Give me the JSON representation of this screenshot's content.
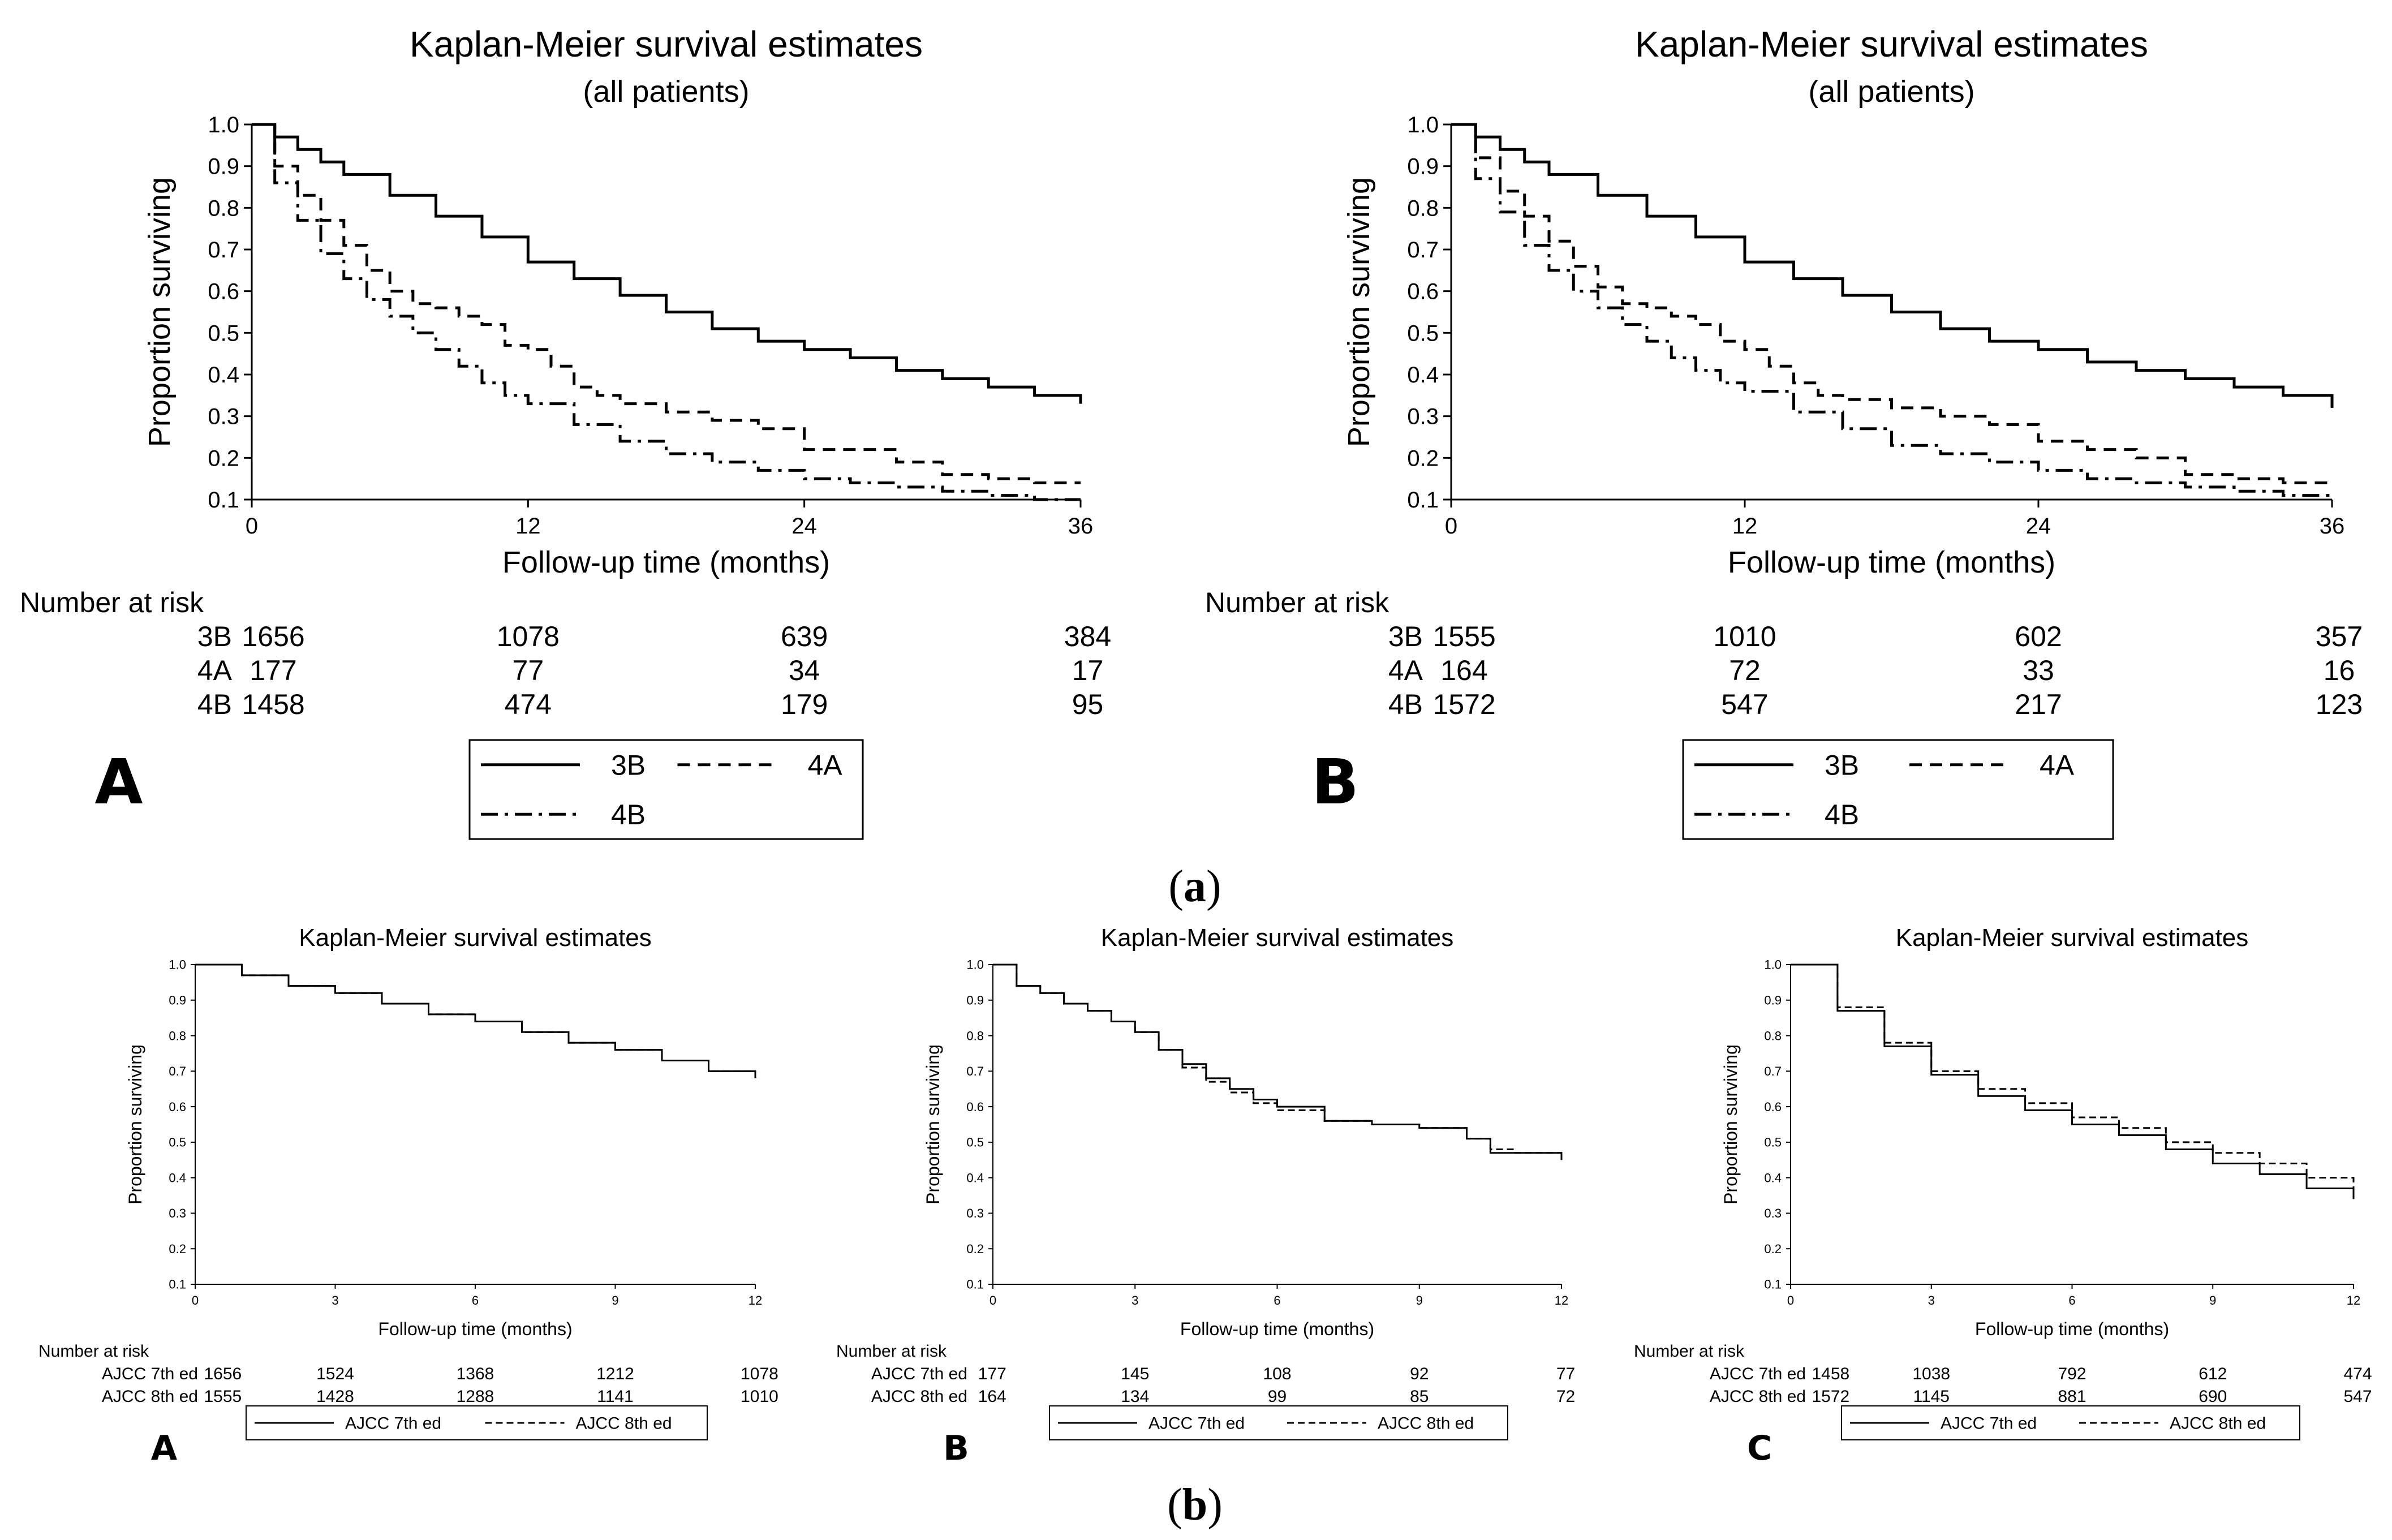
{
  "captions": {
    "a_open": "(",
    "a_letter": "a",
    "a_close": ")",
    "b_open": "(",
    "b_letter": "b",
    "b_close": ")"
  },
  "chart_data": [
    {
      "id": "a-A",
      "type": "line",
      "panel_label": "A",
      "title": "Kaplan-Meier survival estimates",
      "subtitle": "(all patients)",
      "xlabel": "Follow-up time (months)",
      "ylabel": "Proportion surviving",
      "xlim": [
        0,
        36
      ],
      "ylim": [
        0.1,
        1.0
      ],
      "xticks": [
        0,
        12,
        24,
        36
      ],
      "yticks": [
        0.1,
        0.2,
        0.3,
        0.4,
        0.5,
        0.6,
        0.7,
        0.8,
        0.9,
        1.0
      ],
      "series": [
        {
          "name": "3B",
          "style": "solid",
          "x": [
            0,
            1,
            2,
            3,
            4,
            6,
            8,
            10,
            12,
            14,
            16,
            18,
            20,
            22,
            24,
            26,
            28,
            30,
            32,
            34,
            36
          ],
          "y": [
            1.0,
            0.97,
            0.94,
            0.91,
            0.88,
            0.83,
            0.78,
            0.73,
            0.67,
            0.63,
            0.59,
            0.55,
            0.51,
            0.48,
            0.46,
            0.44,
            0.41,
            0.39,
            0.37,
            0.35,
            0.33
          ]
        },
        {
          "name": "4A",
          "style": "dashed",
          "x": [
            0,
            1,
            2,
            3,
            4,
            5,
            6,
            7,
            8,
            9,
            10,
            11,
            12,
            13,
            14,
            15,
            16,
            18,
            20,
            22,
            24,
            26,
            28,
            30,
            32,
            34,
            36
          ],
          "y": [
            1.0,
            0.9,
            0.83,
            0.77,
            0.71,
            0.65,
            0.6,
            0.57,
            0.56,
            0.54,
            0.52,
            0.47,
            0.46,
            0.42,
            0.37,
            0.35,
            0.33,
            0.31,
            0.29,
            0.27,
            0.22,
            0.22,
            0.19,
            0.16,
            0.15,
            0.14,
            0.14
          ]
        },
        {
          "name": "4B",
          "style": "dashdot",
          "x": [
            0,
            1,
            2,
            3,
            4,
            5,
            6,
            7,
            8,
            9,
            10,
            11,
            12,
            14,
            16,
            18,
            20,
            22,
            24,
            26,
            28,
            30,
            32,
            34,
            36
          ],
          "y": [
            1.0,
            0.86,
            0.77,
            0.69,
            0.63,
            0.58,
            0.54,
            0.5,
            0.46,
            0.42,
            0.38,
            0.35,
            0.33,
            0.28,
            0.24,
            0.21,
            0.19,
            0.17,
            0.15,
            0.14,
            0.13,
            0.12,
            0.11,
            0.1,
            0.1
          ]
        }
      ],
      "risk_table": {
        "header": "Number at risk",
        "rows": [
          {
            "label": "3B",
            "values": [
              "1656",
              "1078",
              "639",
              "384"
            ]
          },
          {
            "label": "4A",
            "values": [
              "177",
              "77",
              "34",
              "17"
            ]
          },
          {
            "label": "4B",
            "values": [
              "1458",
              "474",
              "179",
              "95"
            ]
          }
        ]
      },
      "legend": [
        "3B",
        "4A",
        "4B"
      ]
    },
    {
      "id": "a-B",
      "type": "line",
      "panel_label": "B",
      "title": "Kaplan-Meier survival estimates",
      "subtitle": "(all patients)",
      "xlabel": "Follow-up time (months)",
      "ylabel": "Proportion surviving",
      "xlim": [
        0,
        36
      ],
      "ylim": [
        0.1,
        1.0
      ],
      "xticks": [
        0,
        12,
        24,
        36
      ],
      "yticks": [
        0.1,
        0.2,
        0.3,
        0.4,
        0.5,
        0.6,
        0.7,
        0.8,
        0.9,
        1.0
      ],
      "series": [
        {
          "name": "3B",
          "style": "solid",
          "x": [
            0,
            1,
            2,
            3,
            4,
            6,
            8,
            10,
            12,
            14,
            16,
            18,
            20,
            22,
            24,
            26,
            28,
            30,
            32,
            34,
            36
          ],
          "y": [
            1.0,
            0.97,
            0.94,
            0.91,
            0.88,
            0.83,
            0.78,
            0.73,
            0.67,
            0.63,
            0.59,
            0.55,
            0.51,
            0.48,
            0.46,
            0.43,
            0.41,
            0.39,
            0.37,
            0.35,
            0.32
          ]
        },
        {
          "name": "4A",
          "style": "dashed",
          "x": [
            0,
            1,
            2,
            3,
            4,
            5,
            6,
            7,
            8,
            9,
            10,
            11,
            12,
            13,
            14,
            15,
            16,
            18,
            20,
            22,
            24,
            26,
            28,
            30,
            32,
            34,
            36
          ],
          "y": [
            1.0,
            0.92,
            0.84,
            0.78,
            0.72,
            0.66,
            0.61,
            0.57,
            0.56,
            0.54,
            0.52,
            0.48,
            0.46,
            0.42,
            0.38,
            0.35,
            0.34,
            0.32,
            0.3,
            0.28,
            0.24,
            0.22,
            0.2,
            0.16,
            0.15,
            0.14,
            0.14
          ]
        },
        {
          "name": "4B",
          "style": "dashdot",
          "x": [
            0,
            1,
            2,
            3,
            4,
            5,
            6,
            7,
            8,
            9,
            10,
            11,
            12,
            14,
            16,
            18,
            20,
            22,
            24,
            26,
            28,
            30,
            32,
            34,
            36
          ],
          "y": [
            1.0,
            0.87,
            0.79,
            0.71,
            0.65,
            0.6,
            0.56,
            0.52,
            0.48,
            0.44,
            0.41,
            0.38,
            0.36,
            0.31,
            0.27,
            0.23,
            0.21,
            0.19,
            0.17,
            0.15,
            0.14,
            0.13,
            0.12,
            0.11,
            0.11
          ]
        }
      ],
      "risk_table": {
        "header": "Number at risk",
        "rows": [
          {
            "label": "3B",
            "values": [
              "1555",
              "1010",
              "602",
              "357"
            ]
          },
          {
            "label": "4A",
            "values": [
              "164",
              "72",
              "33",
              "16"
            ]
          },
          {
            "label": "4B",
            "values": [
              "1572",
              "547",
              "217",
              "123"
            ]
          }
        ]
      },
      "legend": [
        "3B",
        "4A",
        "4B"
      ]
    },
    {
      "id": "b-A",
      "type": "line",
      "panel_label": "A",
      "title": "Kaplan-Meier survival estimates",
      "xlabel": "Follow-up time (months)",
      "ylabel": "Proportion surviving",
      "xlim": [
        0,
        12
      ],
      "ylim": [
        0.1,
        1.0
      ],
      "xticks": [
        0,
        3,
        6,
        9,
        12
      ],
      "yticks": [
        0.1,
        0.2,
        0.3,
        0.4,
        0.5,
        0.6,
        0.7,
        0.8,
        0.9,
        1.0
      ],
      "series": [
        {
          "name": "AJCC 7th ed",
          "style": "solid",
          "x": [
            0,
            1,
            2,
            3,
            4,
            5,
            6,
            7,
            8,
            9,
            10,
            11,
            12
          ],
          "y": [
            1.0,
            0.97,
            0.94,
            0.92,
            0.89,
            0.86,
            0.84,
            0.81,
            0.78,
            0.76,
            0.73,
            0.7,
            0.68
          ]
        },
        {
          "name": "AJCC 8th ed",
          "style": "dashed",
          "x": [
            0,
            1,
            2,
            3,
            4,
            5,
            6,
            7,
            8,
            9,
            10,
            11,
            12
          ],
          "y": [
            1.0,
            0.97,
            0.94,
            0.92,
            0.89,
            0.86,
            0.84,
            0.81,
            0.78,
            0.76,
            0.73,
            0.7,
            0.68
          ]
        }
      ],
      "risk_table": {
        "header": "Number at risk",
        "rows": [
          {
            "label": "AJCC 7th ed",
            "values": [
              "1656",
              "1524",
              "1368",
              "1212",
              "1078"
            ]
          },
          {
            "label": "AJCC 8th ed",
            "values": [
              "1555",
              "1428",
              "1288",
              "1141",
              "1010"
            ]
          }
        ]
      },
      "legend": [
        "AJCC 7th ed",
        "AJCC 8th ed"
      ]
    },
    {
      "id": "b-B",
      "type": "line",
      "panel_label": "B",
      "title": "Kaplan-Meier survival estimates",
      "xlabel": "Follow-up time (months)",
      "ylabel": "Proportion surviving",
      "xlim": [
        0,
        12
      ],
      "ylim": [
        0.1,
        1.0
      ],
      "xticks": [
        0,
        3,
        6,
        9,
        12
      ],
      "yticks": [
        0.1,
        0.2,
        0.3,
        0.4,
        0.5,
        0.6,
        0.7,
        0.8,
        0.9,
        1.0
      ],
      "series": [
        {
          "name": "AJCC 7th ed",
          "style": "solid",
          "x": [
            0,
            0.5,
            1,
            1.5,
            2,
            2.5,
            3,
            3.5,
            4,
            4.5,
            5,
            5.5,
            6,
            7,
            8,
            9,
            10,
            10.5,
            11,
            12
          ],
          "y": [
            1.0,
            0.94,
            0.92,
            0.89,
            0.87,
            0.84,
            0.81,
            0.76,
            0.72,
            0.68,
            0.65,
            0.62,
            0.6,
            0.56,
            0.55,
            0.54,
            0.51,
            0.47,
            0.47,
            0.45
          ]
        },
        {
          "name": "AJCC 8th ed",
          "style": "dashed",
          "x": [
            0,
            0.5,
            1,
            1.5,
            2,
            2.5,
            3,
            3.5,
            4,
            4.5,
            5,
            5.5,
            6,
            7,
            8,
            9,
            10,
            10.5,
            11,
            12
          ],
          "y": [
            1.0,
            0.94,
            0.92,
            0.89,
            0.87,
            0.84,
            0.81,
            0.76,
            0.71,
            0.67,
            0.64,
            0.61,
            0.59,
            0.56,
            0.55,
            0.54,
            0.51,
            0.48,
            0.47,
            0.45
          ]
        }
      ],
      "risk_table": {
        "header": "Number at risk",
        "rows": [
          {
            "label": "AJCC 7th ed",
            "values": [
              "177",
              "145",
              "108",
              "92",
              "77"
            ]
          },
          {
            "label": "AJCC 8th ed",
            "values": [
              "164",
              "134",
              "99",
              "85",
              "72"
            ]
          }
        ]
      },
      "legend": [
        "AJCC 7th ed",
        "AJCC 8th ed"
      ]
    },
    {
      "id": "b-C",
      "type": "line",
      "panel_label": "C",
      "title": "Kaplan-Meier survival estimates",
      "xlabel": "Follow-up time (months)",
      "ylabel": "Proportion surviving",
      "xlim": [
        0,
        12
      ],
      "ylim": [
        0.1,
        1.0
      ],
      "xticks": [
        0,
        3,
        6,
        9,
        12
      ],
      "yticks": [
        0.1,
        0.2,
        0.3,
        0.4,
        0.5,
        0.6,
        0.7,
        0.8,
        0.9,
        1.0
      ],
      "series": [
        {
          "name": "AJCC 7th ed",
          "style": "solid",
          "x": [
            0,
            1,
            2,
            3,
            4,
            5,
            6,
            7,
            8,
            9,
            10,
            11,
            12
          ],
          "y": [
            1.0,
            0.87,
            0.77,
            0.69,
            0.63,
            0.59,
            0.55,
            0.52,
            0.48,
            0.44,
            0.41,
            0.37,
            0.34
          ]
        },
        {
          "name": "AJCC 8th ed",
          "style": "dashed",
          "x": [
            0,
            1,
            2,
            3,
            4,
            5,
            6,
            7,
            8,
            9,
            10,
            11,
            12
          ],
          "y": [
            1.0,
            0.88,
            0.78,
            0.7,
            0.65,
            0.61,
            0.57,
            0.54,
            0.5,
            0.47,
            0.44,
            0.4,
            0.36
          ]
        }
      ],
      "risk_table": {
        "header": "Number at risk",
        "rows": [
          {
            "label": "AJCC 7th ed",
            "values": [
              "1458",
              "1038",
              "792",
              "612",
              "474"
            ]
          },
          {
            "label": "AJCC 8th ed",
            "values": [
              "1572",
              "1145",
              "881",
              "690",
              "547"
            ]
          }
        ]
      },
      "legend": [
        "AJCC 7th ed",
        "AJCC 8th ed"
      ]
    }
  ]
}
